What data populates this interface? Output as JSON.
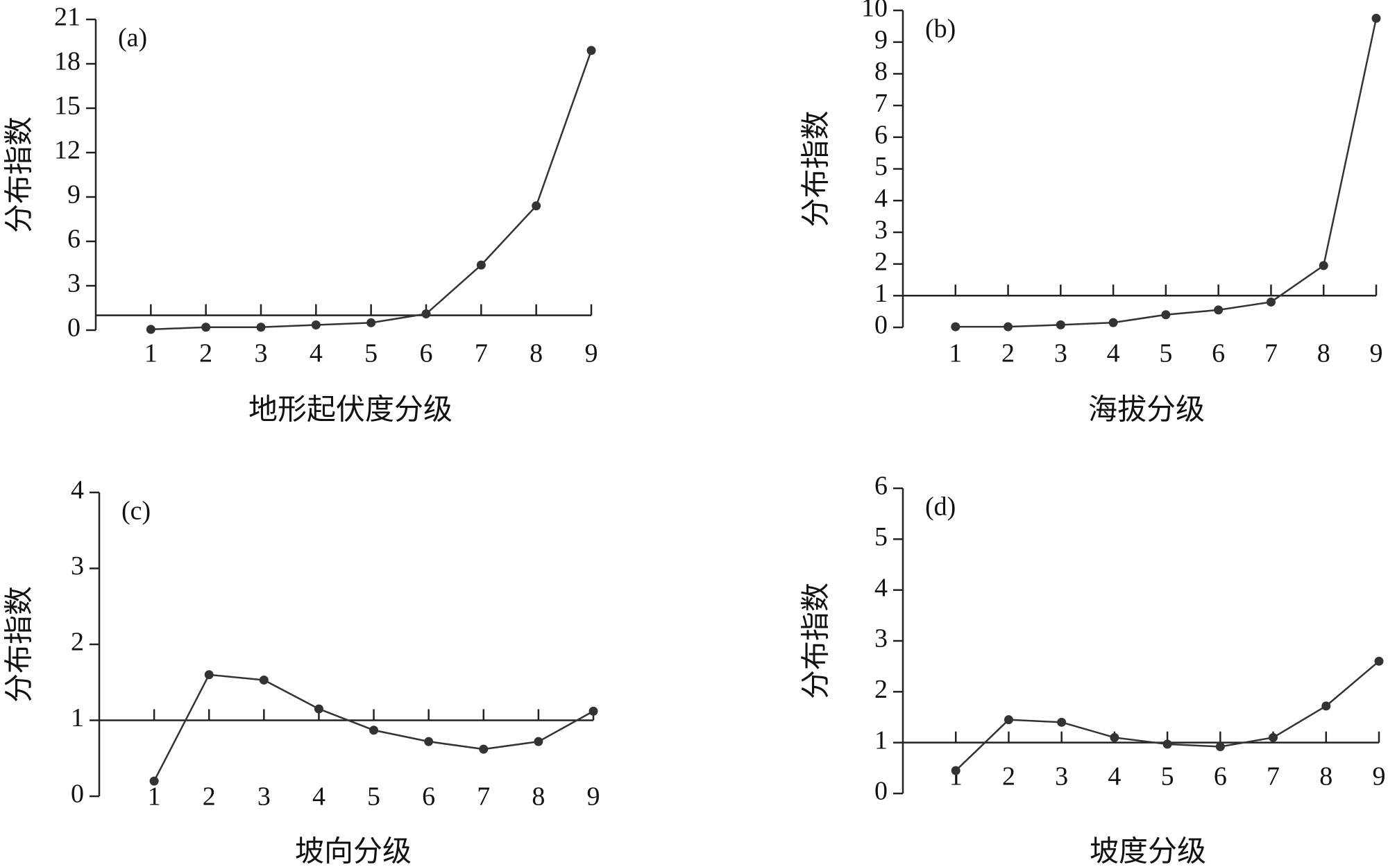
{
  "chart_data": [
    {
      "type": "line",
      "label": "(a)",
      "xlabel": "地形起伏度分级",
      "ylabel": "分布指数",
      "color": "#333333",
      "x": [
        1,
        2,
        3,
        4,
        5,
        6,
        7,
        8,
        9
      ],
      "values": [
        0.05,
        0.2,
        0.2,
        0.35,
        0.5,
        1.1,
        4.4,
        8.4,
        18.9
      ],
      "xlim": [
        0,
        9
      ],
      "xticks": [
        1,
        2,
        3,
        4,
        5,
        6,
        7,
        8,
        9
      ],
      "ylim": [
        0,
        21
      ],
      "yticks": [
        0,
        3,
        6,
        9,
        12,
        15,
        18,
        21
      ],
      "reference_line": 1
    },
    {
      "type": "line",
      "label": "(b)",
      "xlabel": "海拔分级",
      "ylabel": "分布指数",
      "color": "#333333",
      "x": [
        1,
        2,
        3,
        4,
        5,
        6,
        7,
        8,
        9
      ],
      "values": [
        0.02,
        0.02,
        0.08,
        0.15,
        0.4,
        0.55,
        0.8,
        1.95,
        9.75
      ],
      "xlim": [
        0,
        9
      ],
      "xticks": [
        1,
        2,
        3,
        4,
        5,
        6,
        7,
        8,
        9
      ],
      "ylim": [
        0,
        10
      ],
      "yticks": [
        0,
        1,
        2,
        3,
        4,
        5,
        6,
        7,
        8,
        9,
        10
      ],
      "reference_line": 1
    },
    {
      "type": "line",
      "label": "(c)",
      "xlabel": "坡向分级",
      "ylabel": "分布指数",
      "color": "#333333",
      "x": [
        1,
        2,
        3,
        4,
        5,
        6,
        7,
        8,
        9
      ],
      "values": [
        0.2,
        1.6,
        1.53,
        1.15,
        0.87,
        0.72,
        0.62,
        0.72,
        1.12
      ],
      "xlim": [
        0,
        9
      ],
      "xticks": [
        1,
        2,
        3,
        4,
        5,
        6,
        7,
        8,
        9
      ],
      "ylim": [
        0,
        4
      ],
      "yticks": [
        0,
        1,
        2,
        3,
        4
      ],
      "reference_line": 1
    },
    {
      "type": "line",
      "label": "(d)",
      "xlabel": "坡度分级",
      "ylabel": "分布指数",
      "color": "#333333",
      "x": [
        1,
        2,
        3,
        4,
        5,
        6,
        7,
        8,
        9
      ],
      "values": [
        0.45,
        1.45,
        1.4,
        1.1,
        0.97,
        0.92,
        1.1,
        1.72,
        2.6
      ],
      "xlim": [
        0,
        9
      ],
      "xticks": [
        1,
        2,
        3,
        4,
        5,
        6,
        7,
        8,
        9
      ],
      "ylim": [
        0,
        6
      ],
      "yticks": [
        0,
        1,
        2,
        3,
        4,
        5,
        6
      ],
      "reference_line": 1
    }
  ]
}
